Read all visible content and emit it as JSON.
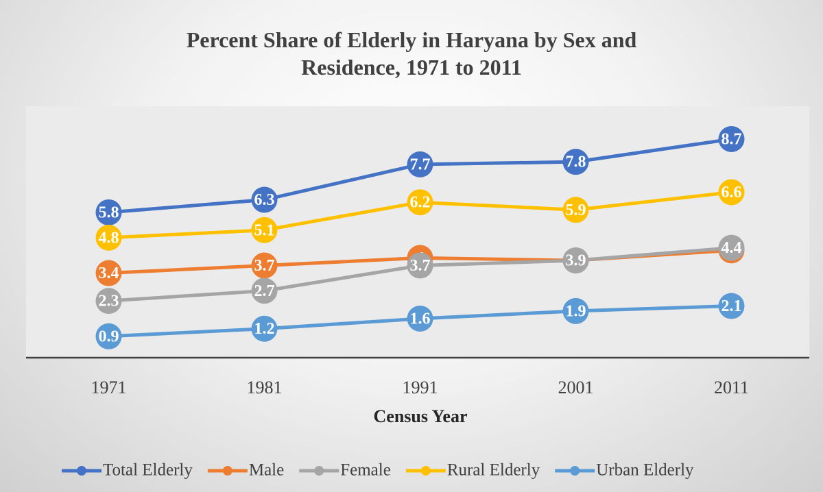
{
  "chart_data": {
    "type": "line",
    "title": "Percent Share of Elderly in Haryana by Sex and Residence, 1971 to 2011",
    "x_label": "Census Year",
    "categories": [
      "1971",
      "1981",
      "1991",
      "2001",
      "2011"
    ],
    "series": [
      {
        "name": "Total Elderly",
        "color": "#4472c4",
        "values": [
          5.8,
          6.3,
          7.7,
          7.8,
          8.7
        ]
      },
      {
        "name": "Male",
        "color": "#ed7d31",
        "values": [
          3.4,
          3.7,
          4,
          3.9,
          4.3
        ]
      },
      {
        "name": "Female",
        "color": "#a5a5a5",
        "values": [
          2.3,
          2.7,
          3.7,
          3.9,
          4.4
        ]
      },
      {
        "name": "Rural Elderly",
        "color": "#ffc000",
        "values": [
          4.8,
          5.1,
          6.2,
          5.9,
          6.6
        ]
      },
      {
        "name": "Urban Elderly",
        "color": "#5b9bd5",
        "values": [
          0.9,
          1.2,
          1.6,
          1.9,
          2.1
        ]
      }
    ],
    "ylim": [
      0,
      10
    ],
    "grid": false,
    "legend": "bottom"
  }
}
